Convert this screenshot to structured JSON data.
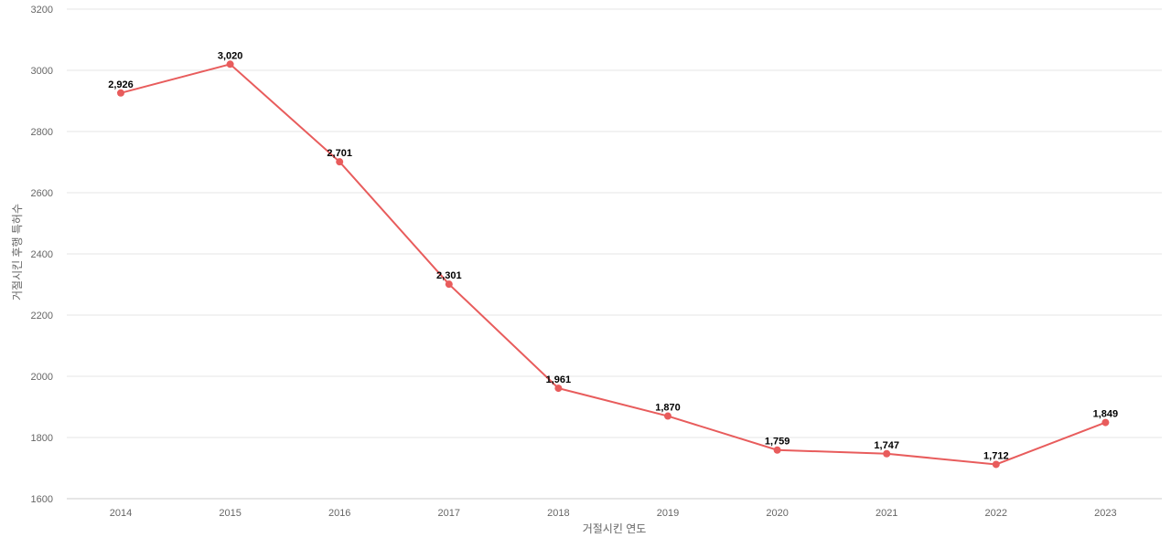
{
  "chart_data": {
    "type": "line",
    "x": [
      "2014",
      "2015",
      "2016",
      "2017",
      "2018",
      "2019",
      "2020",
      "2021",
      "2022",
      "2023"
    ],
    "series": [
      {
        "values": [
          2926,
          3020,
          2701,
          2301,
          1961,
          1870,
          1759,
          1747,
          1712,
          1849
        ],
        "labels": [
          "2,926",
          "3,020",
          "2,701",
          "2,301",
          "1,961",
          "1,870",
          "1,759",
          "1,747",
          "1,712",
          "1,849"
        ],
        "color": "#e85c5c"
      }
    ],
    "xlabel": "거절시킨 연도",
    "ylabel": "거절시킨 후행 특허수",
    "ylim": [
      1600,
      3200
    ],
    "yticks": [
      "1600",
      "1800",
      "2000",
      "2200",
      "2400",
      "2600",
      "2800",
      "3000",
      "3200"
    ],
    "grid": true,
    "legend": "none"
  }
}
